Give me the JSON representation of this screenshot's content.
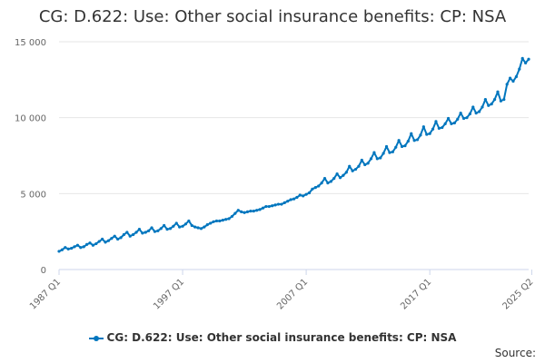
{
  "chart_data": {
    "type": "line",
    "title": "CG: D.622: Use: Other social insurance benefits: CP: NSA",
    "xlabel": "",
    "ylabel": "",
    "x_ticks": [
      "1987 Q1",
      "1997 Q1",
      "2007 Q1",
      "2017 Q1",
      "2025 Q2"
    ],
    "y_ticks": [
      "0",
      "5 000",
      "10 000",
      "15 000"
    ],
    "ylim": [
      0,
      15000
    ],
    "grid": true,
    "legend_position": "bottom",
    "series": [
      {
        "name": "CG: D.622: Use: Other social insurance benefits: CP: NSA",
        "color": "#0076be",
        "start": "1987 Q1",
        "values": [
          1200,
          1300,
          1450,
          1350,
          1400,
          1500,
          1600,
          1450,
          1500,
          1650,
          1750,
          1600,
          1700,
          1850,
          2000,
          1800,
          1900,
          2050,
          2200,
          2000,
          2100,
          2300,
          2450,
          2200,
          2300,
          2450,
          2650,
          2400,
          2450,
          2550,
          2750,
          2500,
          2550,
          2700,
          2900,
          2650,
          2700,
          2850,
          3050,
          2800,
          2850,
          3000,
          3200,
          2900,
          2800,
          2750,
          2700,
          2800,
          2950,
          3050,
          3150,
          3200,
          3200,
          3250,
          3300,
          3350,
          3500,
          3700,
          3900,
          3800,
          3750,
          3800,
          3850,
          3850,
          3900,
          3950,
          4050,
          4150,
          4150,
          4200,
          4250,
          4300,
          4300,
          4400,
          4500,
          4600,
          4650,
          4750,
          4900,
          4850,
          4950,
          5050,
          5300,
          5400,
          5500,
          5700,
          6000,
          5700,
          5800,
          6000,
          6300,
          6050,
          6200,
          6400,
          6800,
          6500,
          6600,
          6800,
          7200,
          6900,
          7000,
          7300,
          7700,
          7300,
          7350,
          7650,
          8100,
          7700,
          7750,
          8050,
          8500,
          8100,
          8150,
          8450,
          8950,
          8500,
          8550,
          8850,
          9400,
          8900,
          8950,
          9250,
          9750,
          9300,
          9350,
          9600,
          9950,
          9600,
          9650,
          9900,
          10300,
          9950,
          10000,
          10250,
          10700,
          10300,
          10400,
          10700,
          11200,
          10800,
          10900,
          11200,
          11700,
          11100,
          11200,
          12200,
          12600,
          12400,
          12700,
          13200,
          13900,
          13600,
          13850
        ]
      }
    ]
  },
  "legend": {
    "label": "CG: D.622: Use: Other social insurance benefits: CP: NSA"
  },
  "source_label": "Source:"
}
